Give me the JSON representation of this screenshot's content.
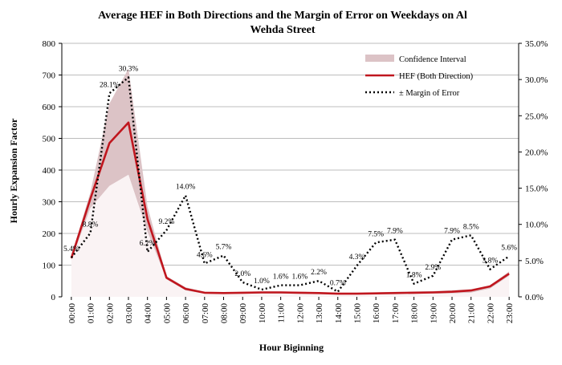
{
  "chart_data": {
    "type": "line",
    "title": [
      "Average HEF in Both Directions and the Margin of Error on Weekdays on Al",
      "Wehda Street"
    ],
    "xlabel": "Hour Biginning",
    "ylabel": "Hourly Expansion Factor",
    "ylim": [
      0,
      800
    ],
    "y_ticks": [
      "0",
      "100",
      "200",
      "300",
      "400",
      "500",
      "600",
      "700",
      "800"
    ],
    "y2lim": [
      0,
      35
    ],
    "y2_ticks": [
      "0.0%",
      "5.0%",
      "10.0%",
      "15.0%",
      "20.0%",
      "25.0%",
      "30.0%",
      "35.0%"
    ],
    "grid": true,
    "legend_position": "top-right",
    "categories": [
      "00:00",
      "01:00",
      "02:00",
      "03:00",
      "04:00",
      "05:00",
      "06:00",
      "07:00",
      "08:00",
      "09:00",
      "10:00",
      "11:00",
      "12:00",
      "13:00",
      "14:00",
      "15:00",
      "16:00",
      "17:00",
      "18:00",
      "19:00",
      "20:00",
      "21:00",
      "22:00",
      "23:00"
    ],
    "series": [
      {
        "name": "Confidence Interval",
        "kind": "band",
        "color": "#dcc3c6",
        "upper": [
          130,
          330,
          610,
          720,
          285,
          65,
          30,
          16,
          14,
          16,
          17,
          17,
          16,
          15,
          10,
          12,
          14,
          16,
          17,
          18,
          21,
          24,
          36,
          80
        ],
        "lower": [
          115,
          280,
          350,
          385,
          205,
          55,
          20,
          10,
          9,
          9,
          10,
          10,
          9,
          8,
          7,
          8,
          9,
          9,
          9,
          10,
          11,
          13,
          26,
          66
        ]
      },
      {
        "name": "HEF (Both Direction)",
        "kind": "line",
        "axis": "left",
        "color": "#c0161e",
        "values": [
          122,
          310,
          485,
          550,
          245,
          60,
          25,
          13,
          12,
          13,
          14,
          14,
          13,
          12,
          10,
          10,
          11,
          12,
          13,
          14,
          16,
          20,
          33,
          73
        ]
      },
      {
        "name": "± Margin of Error",
        "kind": "dotted",
        "axis": "right",
        "color": "#000000",
        "values": [
          5.4,
          8.8,
          28.1,
          30.3,
          6.2,
          9.2,
          14.0,
          4.6,
          5.7,
          2.0,
          1.0,
          1.6,
          1.6,
          2.2,
          0.7,
          4.3,
          7.5,
          7.9,
          1.8,
          2.9,
          7.9,
          8.5,
          3.8,
          5.6
        ],
        "labels": [
          "5.4%",
          "8.8%",
          "28.1%",
          "30.3%",
          "6.2%",
          "9.2%",
          "14.0%",
          "4.6%",
          "5.7%",
          "2.0%",
          "1.0%",
          "1.6%",
          "1.6%",
          "2.2%",
          "0.7%",
          "4.3%",
          "7.5%",
          "7.9%",
          "1.8%",
          "2.9%",
          "7.9%",
          "8.5%",
          "3.8%",
          "5.6%"
        ]
      }
    ]
  }
}
